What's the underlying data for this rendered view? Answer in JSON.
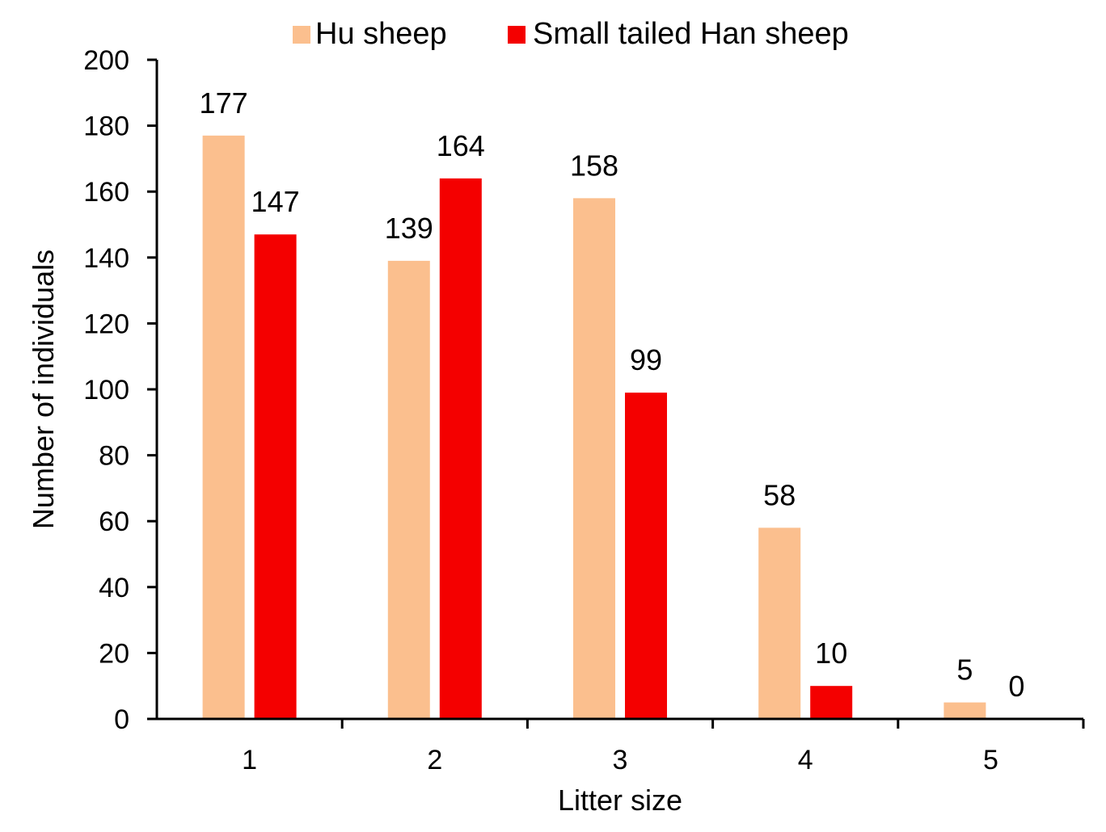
{
  "chart_data": {
    "type": "bar",
    "title": "",
    "xlabel": "Litter size",
    "ylabel": "Number of individuals",
    "categories": [
      "1",
      "2",
      "3",
      "4",
      "5"
    ],
    "series": [
      {
        "name": "Hu sheep",
        "color": "#FBBF8E",
        "values": [
          177,
          139,
          158,
          58,
          5
        ]
      },
      {
        "name": "Small tailed Han sheep",
        "color": "#F40000",
        "values": [
          147,
          164,
          99,
          10,
          0
        ]
      }
    ],
    "ylim": [
      0,
      200
    ],
    "yticks": [
      0,
      20,
      40,
      60,
      80,
      100,
      120,
      140,
      160,
      180,
      200
    ],
    "grid": false,
    "legend_position": "top"
  }
}
